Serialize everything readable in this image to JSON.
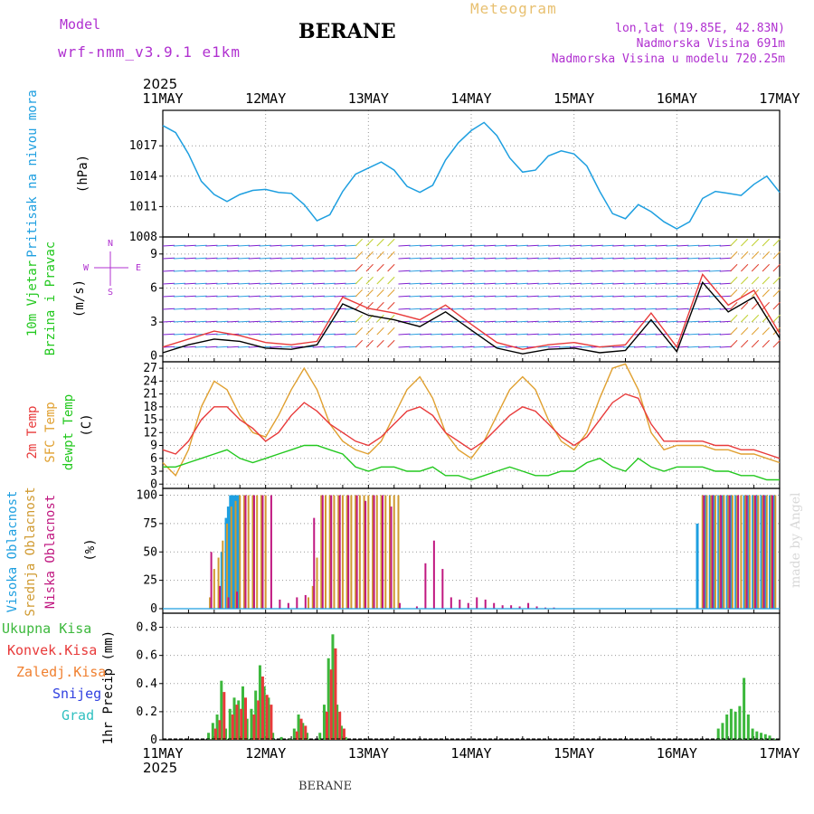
{
  "header": {
    "model_label": "Model",
    "model_name": "wrf-nmm_v3.9.1 e1km",
    "title": "BERANE",
    "subtitle": "Meteogram",
    "coords": "lon,lat (19.85E, 42.83N)",
    "elevation": "Nadmorska Visina 691m",
    "model_elevation": "Nadmorska Visina u modelu 720.25m",
    "year_top": "2025",
    "year_bottom": "2025",
    "footer_station": "BERANE",
    "watermark": "made by Angel"
  },
  "colors": {
    "pressure": "#1e9fe0",
    "wind_title": "#22c81e",
    "wind_compass": "#b030d0",
    "temp_2m": "#e83a3a",
    "temp_sfc": "#e0a030",
    "temp_dewpt": "#22c81e",
    "cloud_high": "#1e9fe0",
    "cloud_mid": "#d09a30",
    "cloud_low": "#c01880",
    "precip_total": "#3cb83c",
    "precip_conv": "#e83a3a",
    "precip_frz": "#f08030",
    "precip_snow": "#3040e0",
    "precip_hail": "#30c0c0"
  },
  "chart_data": [
    {
      "type": "line",
      "panel": "pressure",
      "ylabel": "Pritisak na nivou mora",
      "unit": "(hPa)",
      "x_ticks": [
        "11MAY",
        "12MAY",
        "13MAY",
        "14MAY",
        "15MAY",
        "16MAY",
        "17MAY"
      ],
      "y_ticks": [
        1008,
        1011,
        1014,
        1017
      ],
      "ylim": [
        1008,
        1020.5
      ],
      "x_hours": [
        0,
        3,
        6,
        9,
        12,
        15,
        18,
        21,
        24,
        27,
        30,
        33,
        36,
        39,
        42,
        45,
        48,
        51,
        54,
        57,
        60,
        63,
        66,
        69,
        72,
        75,
        78,
        81,
        84,
        87,
        90,
        93,
        96,
        99,
        102,
        105,
        108,
        111,
        114,
        117,
        120,
        123,
        126,
        129,
        132,
        135,
        138,
        141,
        144
      ],
      "series": [
        {
          "values": [
            1019,
            1018.3,
            1016.2,
            1013.5,
            1012.2,
            1011.5,
            1012.2,
            1012.6,
            1012.7,
            1012.4,
            1012.3,
            1011.2,
            1009.6,
            1010.2,
            1012.5,
            1014.2,
            1014.8,
            1015.4,
            1014.6,
            1013.0,
            1012.4,
            1013.1,
            1015.6,
            1017.3,
            1018.5,
            1019.3,
            1018.0,
            1015.8,
            1014.4,
            1014.6,
            1016.0,
            1016.5,
            1016.2,
            1015.0,
            1012.5,
            1010.3,
            1009.8,
            1011.2,
            1010.5,
            1009.5,
            1008.8,
            1009.5,
            1011.8,
            1012.5,
            1012.3,
            1012.1,
            1013.2,
            1014.0,
            1012.4
          ]
        }
      ]
    },
    {
      "type": "line",
      "panel": "wind",
      "ylabel": "10m Vjetar",
      "ylabel2": "Brzina i Pravac",
      "unit": "(m/s)",
      "compass": [
        "N",
        "W",
        "E",
        "S"
      ],
      "y_ticks": [
        0,
        3,
        6,
        9
      ],
      "ylim": [
        -0.5,
        10.5
      ],
      "x_hours": [
        0,
        6,
        12,
        18,
        24,
        30,
        36,
        42,
        48,
        54,
        60,
        66,
        72,
        78,
        84,
        90,
        96,
        102,
        108,
        114,
        120,
        126,
        132,
        138,
        144
      ],
      "series": [
        {
          "values": [
            0.8,
            1.5,
            2.2,
            1.8,
            1.2,
            1.0,
            1.3,
            5.2,
            4.2,
            3.8,
            3.2,
            4.5,
            2.8,
            1.2,
            0.6,
            1.0,
            1.2,
            0.8,
            1.0,
            3.8,
            0.8,
            7.2,
            4.5,
            5.8,
            2.0
          ]
        },
        {
          "values": [
            0.3,
            1.0,
            1.5,
            1.3,
            0.7,
            0.6,
            1.0,
            4.6,
            3.6,
            3.2,
            2.6,
            3.9,
            2.3,
            0.7,
            0.2,
            0.6,
            0.7,
            0.3,
            0.5,
            3.2,
            0.4,
            6.5,
            3.9,
            5.2,
            1.6
          ]
        }
      ]
    },
    {
      "type": "line",
      "panel": "temperature",
      "ylabel": "2m Temp",
      "ylabel2": "SFC Temp",
      "ylabel3": "dewpt Temp",
      "unit": "(C)",
      "y_ticks": [
        0,
        3,
        6,
        9,
        12,
        15,
        18,
        21,
        24,
        27
      ],
      "ylim": [
        -1,
        28.5
      ],
      "x_hours": [
        0,
        3,
        6,
        9,
        12,
        15,
        18,
        21,
        24,
        27,
        30,
        33,
        36,
        39,
        42,
        45,
        48,
        51,
        54,
        57,
        60,
        63,
        66,
        69,
        72,
        75,
        78,
        81,
        84,
        87,
        90,
        93,
        96,
        99,
        102,
        105,
        108,
        111,
        114,
        117,
        120,
        123,
        126,
        129,
        132,
        135,
        138,
        141,
        144
      ],
      "series": [
        {
          "name": "2m Temp",
          "values": [
            8,
            7,
            10,
            15,
            18,
            18,
            15,
            13,
            10,
            12,
            16,
            19,
            17,
            14,
            12,
            10,
            9,
            11,
            14,
            17,
            18,
            16,
            12,
            10,
            8,
            10,
            13,
            16,
            18,
            17,
            14,
            11,
            9,
            11,
            15,
            19,
            21,
            20,
            14,
            10,
            10,
            10,
            10,
            9,
            9,
            8,
            8,
            7,
            6
          ]
        },
        {
          "name": "SFC Temp",
          "values": [
            5,
            2,
            8,
            18,
            24,
            22,
            16,
            12,
            11,
            16,
            22,
            27,
            22,
            14,
            10,
            8,
            7,
            10,
            16,
            22,
            25,
            20,
            12,
            8,
            6,
            10,
            16,
            22,
            25,
            22,
            15,
            10,
            8,
            12,
            20,
            27,
            28,
            22,
            12,
            8,
            9,
            9,
            9,
            8,
            8,
            7,
            7,
            6,
            5
          ]
        },
        {
          "name": "dewpt Temp",
          "values": [
            4,
            4,
            5,
            6,
            7,
            8,
            6,
            5,
            6,
            7,
            8,
            9,
            9,
            8,
            7,
            4,
            3,
            4,
            4,
            3,
            3,
            4,
            2,
            2,
            1,
            2,
            3,
            4,
            3,
            2,
            2,
            3,
            3,
            5,
            6,
            4,
            3,
            6,
            4,
            3,
            4,
            4,
            4,
            3,
            3,
            2,
            2,
            1,
            1
          ]
        }
      ]
    },
    {
      "type": "bar",
      "panel": "clouds",
      "ylabel": "Visoka Oblacnost",
      "ylabel2": "Srednja Oblacnost",
      "ylabel3": "Niska Oblacnost",
      "unit": "(%)",
      "y_ticks": [
        0,
        25,
        50,
        75,
        100
      ],
      "ylim": [
        -4,
        106
      ],
      "series": [
        {
          "name": "Visoka Oblacnost",
          "x": [
            14,
            15,
            15.5,
            16,
            16.5,
            17,
            17.5,
            18,
            125,
            127,
            128,
            129,
            130,
            131,
            132,
            133,
            134,
            136,
            137,
            138,
            139,
            140,
            141,
            142,
            143
          ],
          "values": [
            50,
            80,
            90,
            100,
            100,
            100,
            100,
            100,
            75,
            100,
            100,
            100,
            100,
            100,
            100,
            100,
            100,
            100,
            100,
            100,
            100,
            100,
            100,
            100,
            100
          ]
        },
        {
          "name": "Srednja Oblacnost",
          "x": [
            11,
            12,
            13,
            14,
            15,
            16,
            17,
            18,
            19,
            20,
            21,
            22,
            23,
            24,
            34,
            35,
            36,
            37,
            38,
            39,
            40,
            41,
            42,
            43,
            44,
            45,
            46,
            47,
            48,
            49,
            50,
            51,
            52,
            53,
            54,
            55,
            126,
            127,
            128,
            129,
            130,
            131,
            132,
            133,
            134,
            135,
            136,
            137,
            138,
            139,
            140,
            141,
            142,
            143
          ],
          "values": [
            10,
            35,
            45,
            60,
            75,
            90,
            95,
            100,
            100,
            100,
            100,
            100,
            100,
            100,
            10,
            20,
            45,
            100,
            100,
            100,
            100,
            100,
            100,
            100,
            100,
            100,
            100,
            100,
            100,
            100,
            100,
            100,
            100,
            100,
            100,
            100,
            100,
            100,
            100,
            100,
            100,
            100,
            100,
            100,
            100,
            100,
            100,
            100,
            100,
            100,
            100,
            100,
            100,
            100
          ]
        },
        {
          "name": "Niska Oblacnost",
          "x": [
            11,
            13,
            15,
            17,
            19,
            21,
            23,
            25,
            27,
            29,
            31,
            33,
            35,
            37,
            39,
            41,
            43,
            45,
            47,
            49,
            51,
            53,
            55,
            57,
            59,
            61,
            63,
            65,
            67,
            69,
            71,
            73,
            75,
            77,
            79,
            81,
            83,
            85,
            87,
            89,
            91,
            126,
            128,
            130,
            132,
            134,
            136,
            138,
            140,
            142
          ],
          "values": [
            50,
            20,
            10,
            15,
            100,
            100,
            100,
            100,
            8,
            5,
            10,
            12,
            80,
            100,
            100,
            100,
            100,
            100,
            95,
            100,
            100,
            90,
            5,
            0,
            2,
            40,
            60,
            35,
            10,
            8,
            5,
            10,
            8,
            5,
            3,
            3,
            2,
            5,
            2,
            1,
            1,
            100,
            100,
            100,
            100,
            100,
            100,
            100,
            100,
            100
          ]
        }
      ]
    },
    {
      "type": "bar",
      "panel": "precip",
      "ylabel": "1hr Precip (mm)",
      "legend": [
        "Ukupna Kisa",
        "Konvek.Kisa",
        "Zaledj.Kisa",
        "Snijeg",
        "Grad"
      ],
      "y_ticks": [
        0,
        0.2,
        0.4,
        0.6,
        0.8
      ],
      "ylim": [
        0,
        0.9
      ],
      "series": [
        {
          "name": "Ukupna Kisa",
          "x": [
            11,
            12,
            13,
            14,
            15,
            16,
            17,
            18,
            19,
            20,
            21,
            22,
            23,
            24,
            25,
            26,
            28,
            30,
            31,
            32,
            33,
            34,
            37,
            38,
            39,
            40,
            41,
            42,
            43,
            130,
            131,
            132,
            133,
            134,
            135,
            136,
            137,
            138,
            139,
            140,
            141,
            142,
            143
          ],
          "values": [
            0.05,
            0.12,
            0.18,
            0.42,
            0.08,
            0.22,
            0.3,
            0.28,
            0.38,
            0.15,
            0.22,
            0.35,
            0.53,
            0.38,
            0.3,
            0.05,
            0.02,
            0.01,
            0.08,
            0.18,
            0.12,
            0.05,
            0.05,
            0.25,
            0.58,
            0.75,
            0.25,
            0.1,
            0.02,
            0.08,
            0.12,
            0.18,
            0.22,
            0.2,
            0.24,
            0.44,
            0.18,
            0.08,
            0.06,
            0.05,
            0.04,
            0.03,
            0.01
          ]
        },
        {
          "name": "Konvek.Kisa",
          "x": [
            12,
            13,
            14,
            16,
            17,
            18,
            19,
            21,
            22,
            23,
            24,
            25,
            31,
            32,
            33,
            38,
            39,
            40,
            41,
            42
          ],
          "values": [
            0.08,
            0.14,
            0.34,
            0.18,
            0.25,
            0.22,
            0.3,
            0.18,
            0.28,
            0.45,
            0.32,
            0.25,
            0.06,
            0.15,
            0.1,
            0.2,
            0.5,
            0.65,
            0.2,
            0.08
          ]
        }
      ]
    }
  ]
}
